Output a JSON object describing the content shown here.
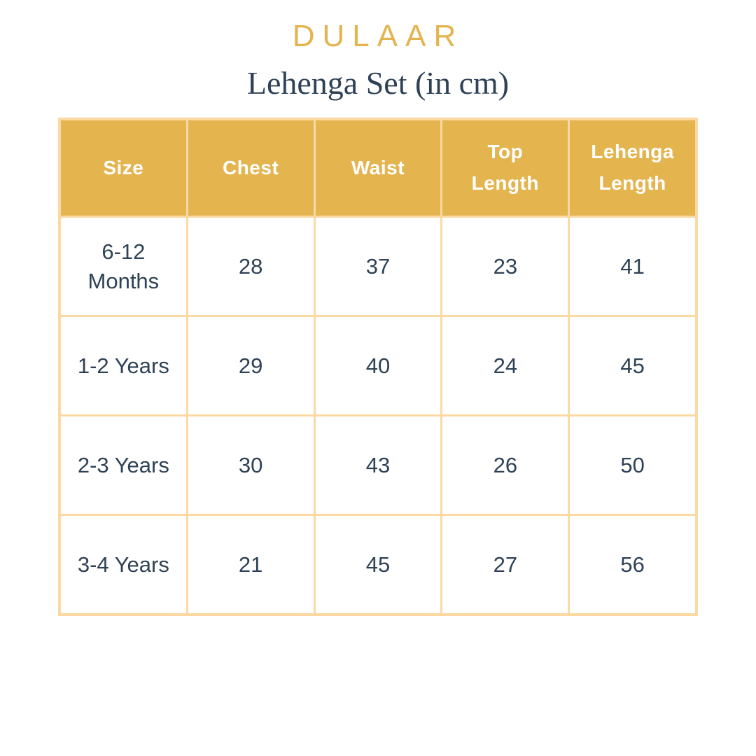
{
  "brand": {
    "name": "DULAAR"
  },
  "title": "Lehenga Set (in cm)",
  "colors": {
    "gold": "#E4B44F",
    "light_gold_border": "#FBD9A3",
    "navy_text": "#2E4156",
    "header_text": "#FFFFFF",
    "background": "#FFFFFF"
  },
  "chart_data": {
    "type": "table",
    "title": "Lehenga Set (in cm)",
    "unit": "cm",
    "columns": [
      "Size",
      "Chest",
      "Waist",
      "Top Length",
      "Lehenga Length"
    ],
    "rows": [
      [
        "6-12 Months",
        28,
        37,
        23,
        41
      ],
      [
        "1-2 Years",
        29,
        40,
        24,
        45
      ],
      [
        "2-3 Years",
        30,
        43,
        26,
        50
      ],
      [
        "3-4 Years",
        21,
        45,
        27,
        56
      ]
    ]
  }
}
